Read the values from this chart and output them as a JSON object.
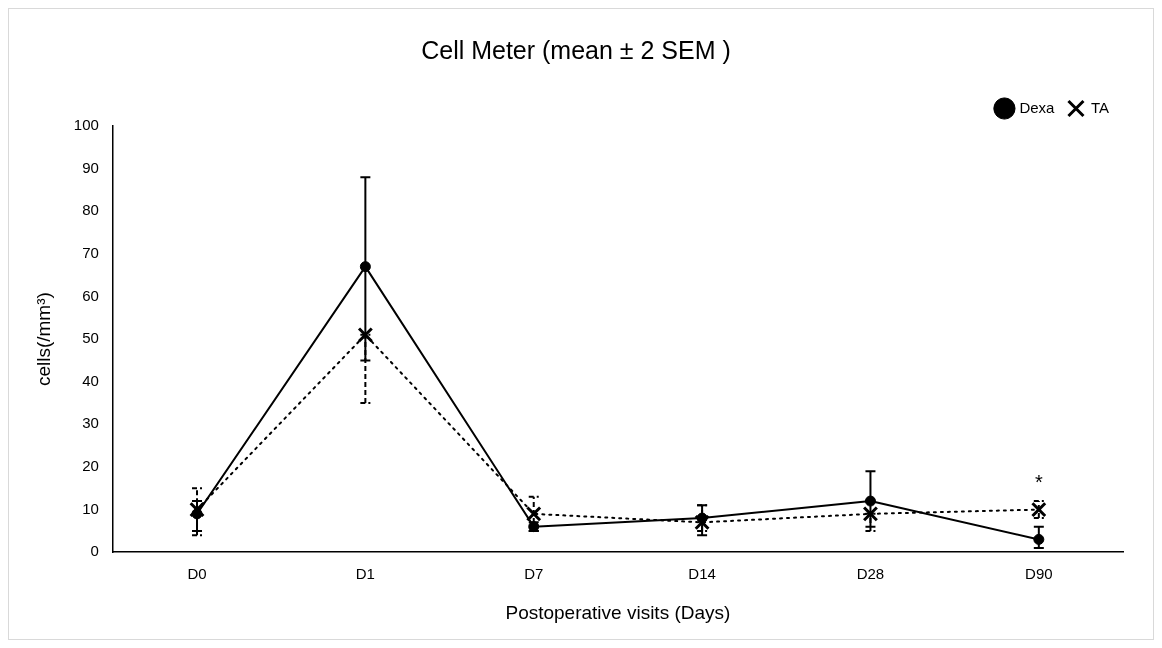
{
  "chart_data": {
    "type": "line",
    "title": "Cell Meter (mean ± 2 SEM )",
    "xlabel": "Postoperative visits (Days)",
    "ylabel": "cells(/mm³)",
    "categories": [
      "D0",
      "D1",
      "D7",
      "D14",
      "D28",
      "D90"
    ],
    "series": [
      {
        "name": "Dexa",
        "color": "#000000",
        "marker": "circle",
        "line_style": "solid",
        "values": [
          9,
          67,
          6,
          8,
          12,
          3
        ],
        "errors": [
          [
            5,
            12
          ],
          [
            45,
            88
          ],
          [
            5,
            7
          ],
          [
            4,
            11
          ],
          [
            6,
            19
          ],
          [
            1,
            6
          ]
        ]
      },
      {
        "name": "TA",
        "color": "#000000",
        "marker": "cross",
        "line_style": "dotted",
        "values": [
          10,
          51,
          9,
          7,
          9,
          10
        ],
        "errors": [
          [
            4,
            15
          ],
          [
            35,
            51
          ],
          [
            5,
            13
          ],
          [
            5,
            11
          ],
          [
            5,
            9
          ],
          [
            8,
            12
          ]
        ]
      }
    ],
    "ylim": [
      0,
      100
    ],
    "yticks": [
      0,
      10,
      20,
      30,
      40,
      50,
      60,
      70,
      80,
      90,
      100
    ],
    "grid": false,
    "legend": "top right",
    "annotations": [
      "*"
    ]
  }
}
